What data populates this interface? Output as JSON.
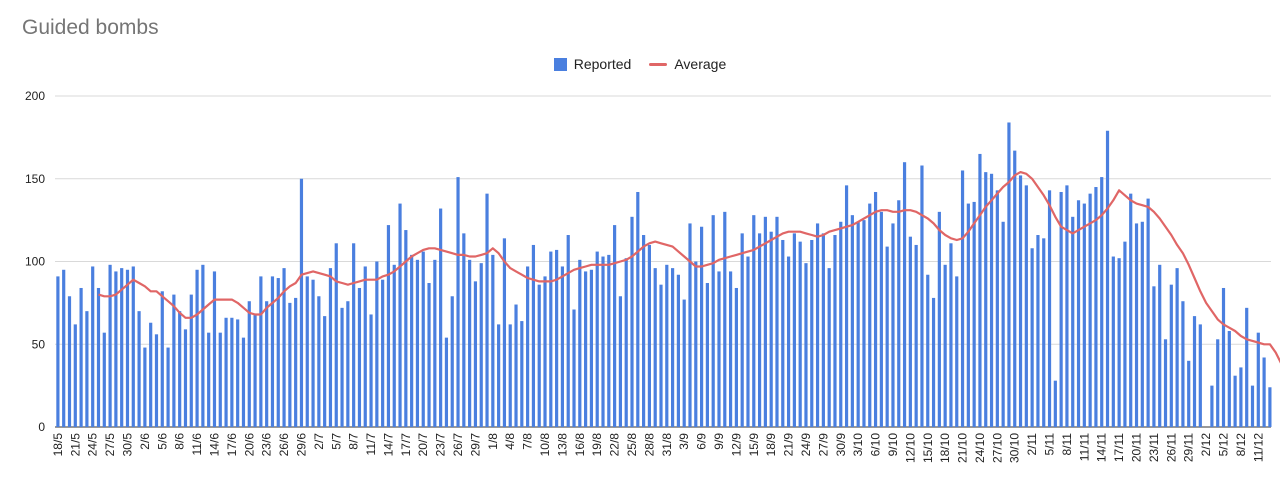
{
  "chart_data": {
    "type": "bar",
    "title": "Guided bombs",
    "series": [
      {
        "name": "Reported",
        "type": "bar",
        "color": "#4a7fdf"
      },
      {
        "name": "Average",
        "type": "line",
        "color": "#e06666"
      }
    ],
    "ylim": [
      0,
      200
    ],
    "yticks": [
      0,
      50,
      100,
      150,
      200
    ],
    "grid": true,
    "legend": "top-center",
    "x": [
      "18/5",
      "19/5",
      "20/5",
      "21/5",
      "22/5",
      "23/5",
      "24/5",
      "25/5",
      "26/5",
      "27/5",
      "28/5",
      "29/5",
      "30/5",
      "31/5",
      "1/6",
      "2/6",
      "3/6",
      "4/6",
      "5/6",
      "6/6",
      "7/6",
      "8/6",
      "9/6",
      "10/6",
      "11/6",
      "12/6",
      "13/6",
      "14/6",
      "15/6",
      "16/6",
      "17/6",
      "18/6",
      "19/6",
      "20/6",
      "21/6",
      "22/6",
      "23/6",
      "24/6",
      "25/6",
      "26/6",
      "27/6",
      "28/6",
      "29/6",
      "30/6",
      "1/7",
      "2/7",
      "3/7",
      "4/7",
      "5/7",
      "6/7",
      "7/7",
      "8/7",
      "9/7",
      "10/7",
      "11/7",
      "12/7",
      "13/7",
      "14/7",
      "15/7",
      "16/7",
      "17/7",
      "18/7",
      "19/7",
      "20/7",
      "21/7",
      "22/7",
      "23/7",
      "24/7",
      "25/7",
      "26/7",
      "27/7",
      "28/7",
      "29/7",
      "30/7",
      "31/7",
      "1/8",
      "2/8",
      "3/8",
      "4/8",
      "5/8",
      "6/8",
      "7/8",
      "8/8",
      "9/8",
      "10/8",
      "11/8",
      "12/8",
      "13/8",
      "14/8",
      "15/8",
      "16/8",
      "17/8",
      "18/8",
      "19/8",
      "20/8",
      "21/8",
      "22/8",
      "23/8",
      "24/8",
      "25/8",
      "26/8",
      "27/8",
      "28/8",
      "29/8",
      "30/8",
      "31/8",
      "1/9",
      "2/9",
      "3/9",
      "4/9",
      "5/9",
      "6/9",
      "7/9",
      "8/9",
      "9/9",
      "10/9",
      "11/9",
      "12/9",
      "13/9",
      "14/9",
      "15/9",
      "16/9",
      "17/9",
      "18/9",
      "19/9",
      "20/9",
      "21/9",
      "22/9",
      "23/9",
      "24/9",
      "25/9",
      "26/9",
      "27/9",
      "28/9",
      "29/9",
      "30/9",
      "1/10",
      "2/10",
      "3/10",
      "4/10",
      "5/10",
      "6/10",
      "7/10",
      "8/10",
      "9/10",
      "10/10",
      "11/10",
      "12/10",
      "13/10",
      "14/10",
      "15/10",
      "16/10",
      "17/10",
      "18/10",
      "19/10",
      "20/10",
      "21/10",
      "22/10",
      "23/10",
      "24/10",
      "25/10",
      "26/10",
      "27/10",
      "28/10",
      "29/10",
      "30/10",
      "31/10",
      "1/11",
      "2/11",
      "3/11",
      "4/11",
      "5/11",
      "6/11",
      "7/11",
      "8/11",
      "9/11",
      "10/11",
      "11/11",
      "12/11",
      "13/11",
      "14/11",
      "15/11",
      "16/11",
      "17/11",
      "18/11",
      "19/11",
      "20/11",
      "21/11",
      "22/11",
      "23/11",
      "24/11",
      "25/11",
      "26/11",
      "27/11",
      "28/11",
      "29/11",
      "30/11",
      "1/12",
      "2/12",
      "3/12",
      "4/12",
      "5/12",
      "6/12",
      "7/12",
      "8/12",
      "9/12",
      "10/12",
      "11/12",
      "12/12"
    ],
    "xtick_labels": [
      "18/5",
      "21/5",
      "24/5",
      "27/5",
      "30/5",
      "2/6",
      "5/6",
      "8/6",
      "11/6",
      "14/6",
      "17/6",
      "20/6",
      "23/6",
      "26/6",
      "29/6",
      "2/7",
      "5/7",
      "8/7",
      "11/7",
      "14/7",
      "17/7",
      "20/7",
      "23/7",
      "26/7",
      "29/7",
      "1/8",
      "4/8",
      "7/8",
      "10/8",
      "13/8",
      "16/8",
      "19/8",
      "22/8",
      "25/8",
      "28/8",
      "31/8",
      "3/9",
      "6/9",
      "9/9",
      "12/9",
      "15/9",
      "18/9",
      "21/9",
      "24/9",
      "27/9",
      "30/9",
      "3/10",
      "6/10",
      "9/10",
      "12/10",
      "15/10",
      "18/10",
      "21/10",
      "24/10",
      "27/10",
      "30/10",
      "2/11",
      "5/11",
      "8/11",
      "11/11",
      "14/11",
      "17/11",
      "20/11",
      "23/11",
      "26/11",
      "29/11",
      "2/12",
      "5/12",
      "8/12",
      "11/12"
    ],
    "reported": [
      91,
      95,
      79,
      62,
      84,
      70,
      97,
      84,
      57,
      98,
      94,
      96,
      95,
      97,
      70,
      48,
      63,
      56,
      82,
      48,
      80,
      70,
      59,
      80,
      95,
      98,
      57,
      94,
      57,
      66,
      66,
      65,
      54,
      76,
      68,
      91,
      76,
      91,
      90,
      96,
      75,
      78,
      150,
      91,
      89,
      79,
      67,
      96,
      111,
      72,
      76,
      111,
      84,
      97,
      68,
      100,
      89,
      122,
      98,
      135,
      119,
      104,
      101,
      106,
      87,
      101,
      132,
      54,
      79,
      151,
      117,
      101,
      88,
      99,
      141,
      104,
      62,
      114,
      62,
      74,
      64,
      97,
      110,
      86,
      91,
      106,
      107,
      97,
      116,
      71,
      101,
      94,
      95,
      106,
      103,
      104,
      122,
      79,
      102,
      127,
      142,
      116,
      110,
      96,
      86,
      98,
      96,
      92,
      77,
      123,
      100,
      121,
      87,
      128,
      94,
      130,
      94,
      84,
      117,
      103,
      128,
      117,
      127,
      118,
      127,
      113,
      103,
      117,
      112,
      99,
      113,
      123,
      117,
      96,
      116,
      124,
      146,
      128,
      124,
      125,
      135,
      142,
      130,
      109,
      123,
      137,
      160,
      115,
      110,
      158,
      92,
      78,
      130,
      98,
      111,
      91,
      155,
      135,
      136,
      165,
      154,
      153,
      143,
      124,
      184,
      167,
      152,
      146,
      108,
      116,
      114,
      143,
      28,
      142,
      146,
      127,
      137,
      135,
      141,
      145,
      151,
      179,
      103,
      102,
      112,
      141,
      123,
      124,
      138,
      85,
      98,
      53,
      86,
      96,
      76,
      40,
      67,
      62,
      0,
      25,
      53,
      84,
      58,
      31,
      36,
      72,
      25,
      57,
      42,
      24
    ],
    "average": [
      null,
      null,
      null,
      null,
      null,
      null,
      null,
      80,
      79,
      79,
      80,
      83,
      86,
      89,
      87,
      85,
      82,
      82,
      79,
      76,
      73,
      69,
      66,
      66,
      68,
      71,
      74,
      77,
      77,
      77,
      77,
      75,
      72,
      69,
      68,
      68,
      72,
      75,
      78,
      82,
      85,
      87,
      92,
      93,
      94,
      93,
      92,
      91,
      88,
      87,
      86,
      87,
      88,
      89,
      89,
      89,
      91,
      92,
      94,
      97,
      100,
      103,
      105,
      107,
      108,
      108,
      107,
      106,
      105,
      104,
      104,
      103,
      103,
      104,
      105,
      108,
      105,
      100,
      96,
      94,
      92,
      90,
      89,
      88,
      88,
      88,
      89,
      91,
      93,
      95,
      96,
      97,
      98,
      98,
      98,
      98,
      99,
      100,
      101,
      103,
      106,
      109,
      111,
      112,
      111,
      110,
      109,
      106,
      103,
      100,
      97,
      97,
      98,
      99,
      101,
      102,
      103,
      104,
      105,
      106,
      107,
      109,
      111,
      113,
      115,
      117,
      118,
      118,
      118,
      117,
      116,
      115,
      116,
      118,
      119,
      120,
      121,
      122,
      124,
      126,
      128,
      130,
      131,
      131,
      130,
      130,
      131,
      131,
      130,
      128,
      126,
      123,
      119,
      116,
      114,
      113,
      114,
      118,
      123,
      128,
      133,
      137,
      141,
      145,
      148,
      152,
      154,
      153,
      150,
      145,
      140,
      134,
      127,
      121,
      119,
      117,
      119,
      121,
      123,
      125,
      128,
      132,
      137,
      143,
      140,
      137,
      135,
      134,
      133,
      130,
      126,
      121,
      116,
      110,
      105,
      98,
      90,
      82,
      75,
      70,
      65,
      62,
      60,
      58,
      55,
      53,
      52,
      51,
      50,
      50,
      45,
      38
    ]
  }
}
